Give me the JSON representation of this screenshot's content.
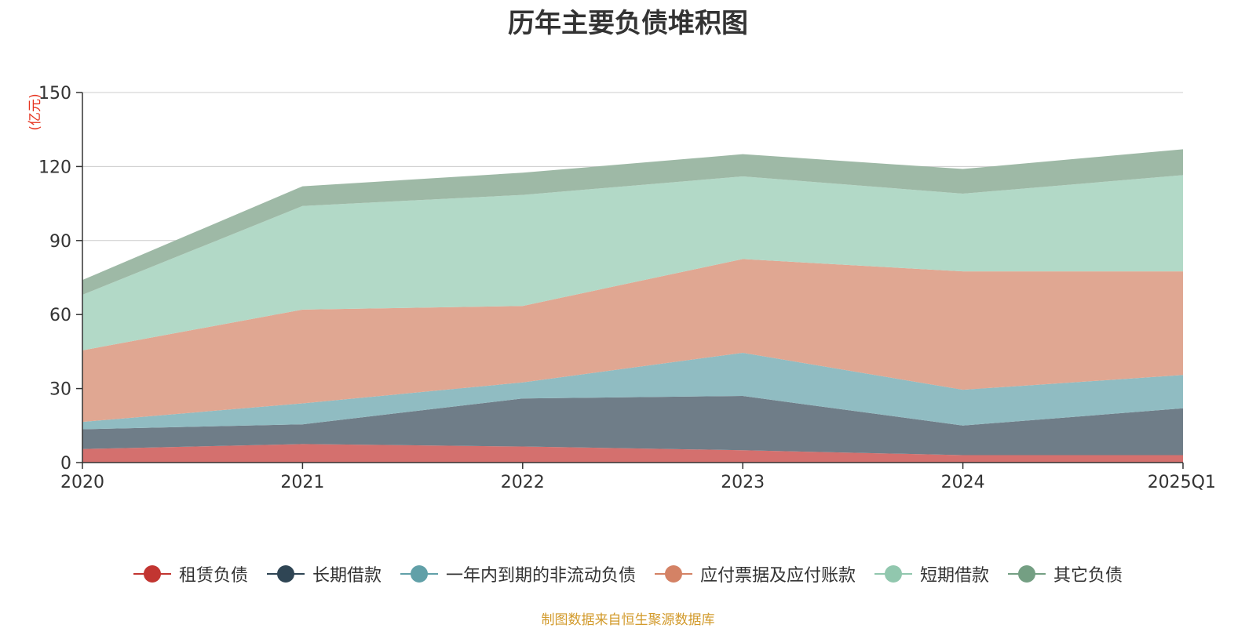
{
  "chart_data": {
    "type": "area",
    "stacked": true,
    "title": "历年主要负债堆积图",
    "unit_label": "(亿元)",
    "x": [
      "2020",
      "2021",
      "2022",
      "2023",
      "2024",
      "2025Q1"
    ],
    "ylim": [
      0,
      150
    ],
    "yticks": [
      0,
      30,
      60,
      90,
      120,
      150
    ],
    "grid": true,
    "legend_position": "bottom",
    "series": [
      {
        "name": "租赁负债",
        "color": "#c23531",
        "fill": "#d4706e",
        "values": [
          5.5,
          7.5,
          6.5,
          5.0,
          3.0,
          3.0
        ]
      },
      {
        "name": "长期借款",
        "color": "#2f4554",
        "fill": "#6f7d88",
        "values": [
          8.0,
          8.0,
          19.5,
          22.0,
          12.0,
          19.0
        ]
      },
      {
        "name": "一年内到期的非流动负债",
        "color": "#61a0a8",
        "fill": "#90bcc2",
        "values": [
          3.0,
          8.5,
          6.5,
          17.5,
          14.5,
          13.5
        ]
      },
      {
        "name": "应付票据及应付账款",
        "color": "#d48265",
        "fill": "#e0a792",
        "values": [
          29.0,
          38.0,
          31.0,
          38.0,
          48.0,
          42.0
        ]
      },
      {
        "name": "短期借款",
        "color": "#91c7ae",
        "fill": "#b2d9c7",
        "values": [
          22.5,
          42.0,
          45.0,
          33.5,
          31.5,
          39.0
        ]
      },
      {
        "name": "其它负债",
        "color": "#749f83",
        "fill": "#9eb9a6",
        "values": [
          6.0,
          8.0,
          9.0,
          9.0,
          10.0,
          10.5
        ]
      }
    ]
  },
  "source_note": "制图数据来自恒生聚源数据库"
}
